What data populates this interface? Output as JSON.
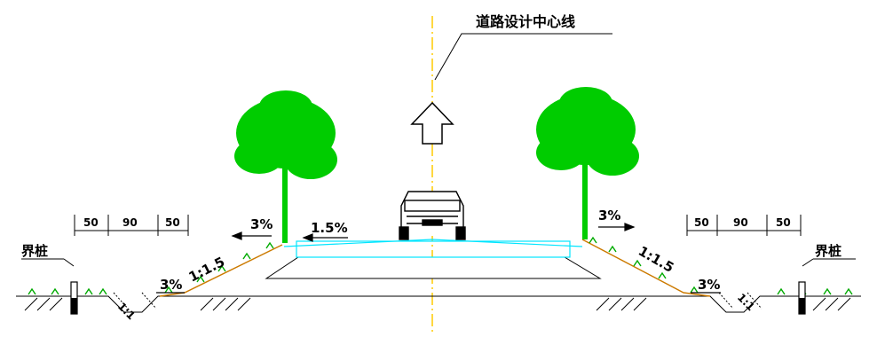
{
  "title": "道路设计中心线",
  "boundary_marker": "界桩",
  "slopes": {
    "road_crown": "1.5%",
    "shoulder": "3%",
    "embankment": "1:1.5",
    "ditch_bottom": "3%",
    "ditch_side": "1:1"
  },
  "ditch_dims": [
    "50",
    "90",
    "50"
  ],
  "colors": {
    "tree": "#00cc00",
    "grass": "#00aa00",
    "pavement": "#00e5ff",
    "slope": "#cc7a00",
    "centerline": "#ffcc00",
    "ink": "#000000"
  },
  "icons": [
    "tree-icon",
    "car-icon",
    "arrow-up-icon",
    "boundary-post-icon"
  ]
}
